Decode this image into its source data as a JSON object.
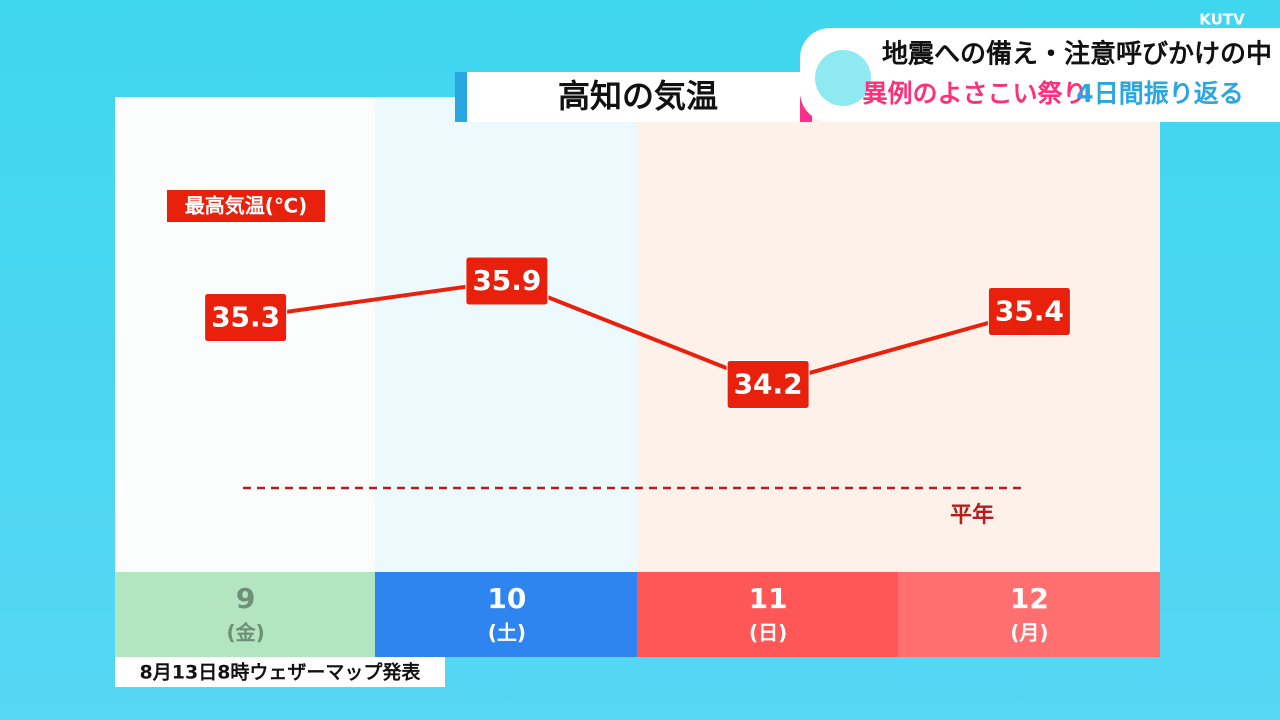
{
  "header": {
    "logo": "KUTV",
    "headline": "地震への備え・注意呼びかけの中",
    "subline_1": "異例のよさこい祭り",
    "subline_2": "4日間振り返る"
  },
  "chart_data": {
    "type": "line",
    "title": "高知の気温",
    "categories": [
      "9",
      "10",
      "11",
      "12"
    ],
    "weekdays": [
      "(金)",
      "(土)",
      "(日)",
      "(月)"
    ],
    "series": [
      {
        "name": "最高気温(℃)",
        "color": "#e8200c",
        "values": [
          35.3,
          35.9,
          34.2,
          35.4
        ]
      }
    ],
    "normal": {
      "label": "平年",
      "value": 32.5,
      "color": "#b02020"
    }
  },
  "footer": "8月13日8時ウェザーマップ発表"
}
